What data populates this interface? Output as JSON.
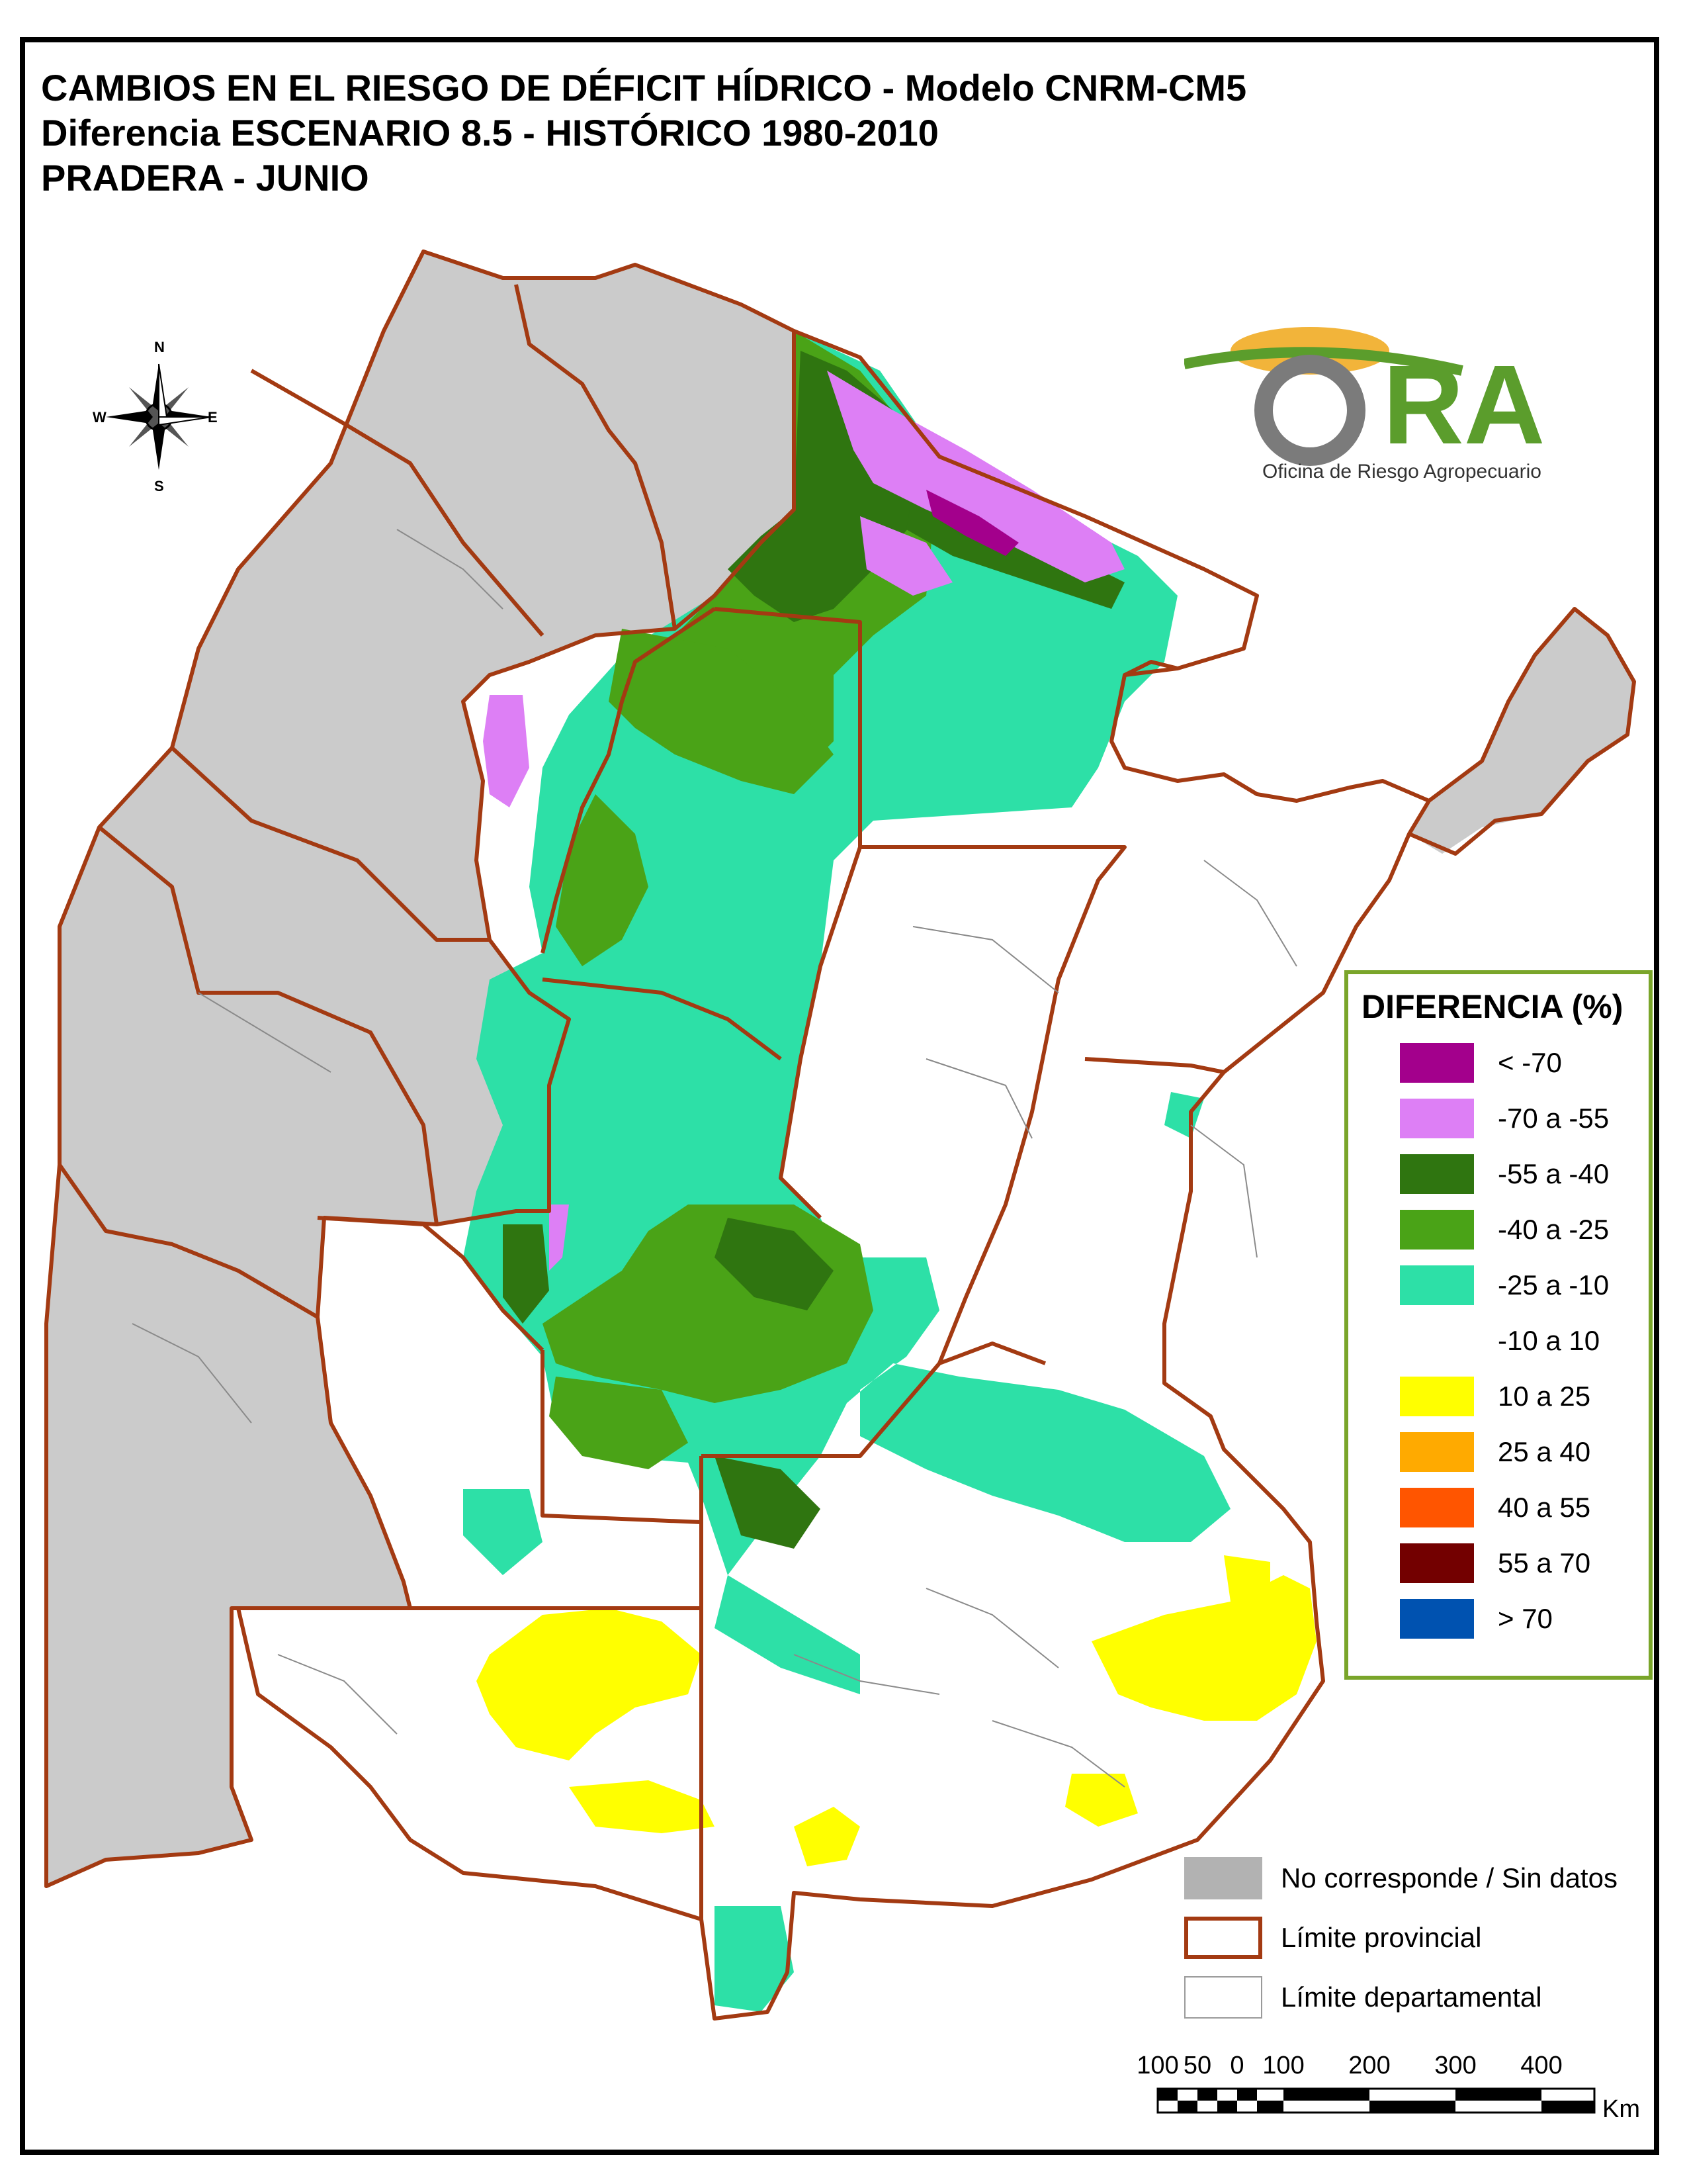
{
  "title": {
    "line1": "CAMBIOS EN EL RIESGO DE DÉFICIT HÍDRICO - Modelo CNRM-CM5",
    "line2": "Diferencia ESCENARIO 8.5 - HISTÓRICO 1980-2010",
    "line3": "PRADERA - JUNIO"
  },
  "compass": {
    "n": "N",
    "s": "S",
    "e": "E",
    "w": "W"
  },
  "logo": {
    "mark": "ORA",
    "subtitle": "Oficina de Riesgo Agropecuario"
  },
  "legend": {
    "title": "DIFERENCIA (%)",
    "items": [
      {
        "label": "< -70",
        "color": "#a3008c"
      },
      {
        "label": "-70 a -55",
        "color": "#dd7ff5"
      },
      {
        "label": "-55 a -40",
        "color": "#2f7510"
      },
      {
        "label": "-40 a -25",
        "color": "#4aa317"
      },
      {
        "label": "-25 a -10",
        "color": "#2de0a7"
      },
      {
        "label": "-10 a 10",
        "color": "#ffffff"
      },
      {
        "label": "10 a 25",
        "color": "#ffff00"
      },
      {
        "label": "25 a 40",
        "color": "#ffaa00"
      },
      {
        "label": "40 a 55",
        "color": "#ff5500"
      },
      {
        "label": "55 a 70",
        "color": "#730000"
      },
      {
        "label": "> 70",
        "color": "#0052b0"
      }
    ]
  },
  "legend_extra": {
    "items": [
      {
        "label": "No corresponde / Sin datos",
        "color": "#b2b2b2",
        "kind": "fill"
      },
      {
        "label": "Límite provincial",
        "color": "#a33a12",
        "kind": "outline"
      },
      {
        "label": "Límite departamental",
        "color": "#9a9a9a",
        "kind": "outline-thin"
      }
    ]
  },
  "scale": {
    "labels": [
      "100",
      "50",
      "0",
      "100",
      "200",
      "300",
      "400"
    ],
    "unit": "Km"
  },
  "colors": {
    "province_border": "#a33a12",
    "no_data": "#cbcbcb",
    "gray_dark": "#b2b2b2",
    "green_light": "#2de0a7",
    "green_mid": "#4aa317",
    "green_dark": "#2f7510",
    "violet": "#dd7ff5",
    "yellow": "#ffff00",
    "frame": "#000000",
    "legend_border": "#7aa52a"
  }
}
